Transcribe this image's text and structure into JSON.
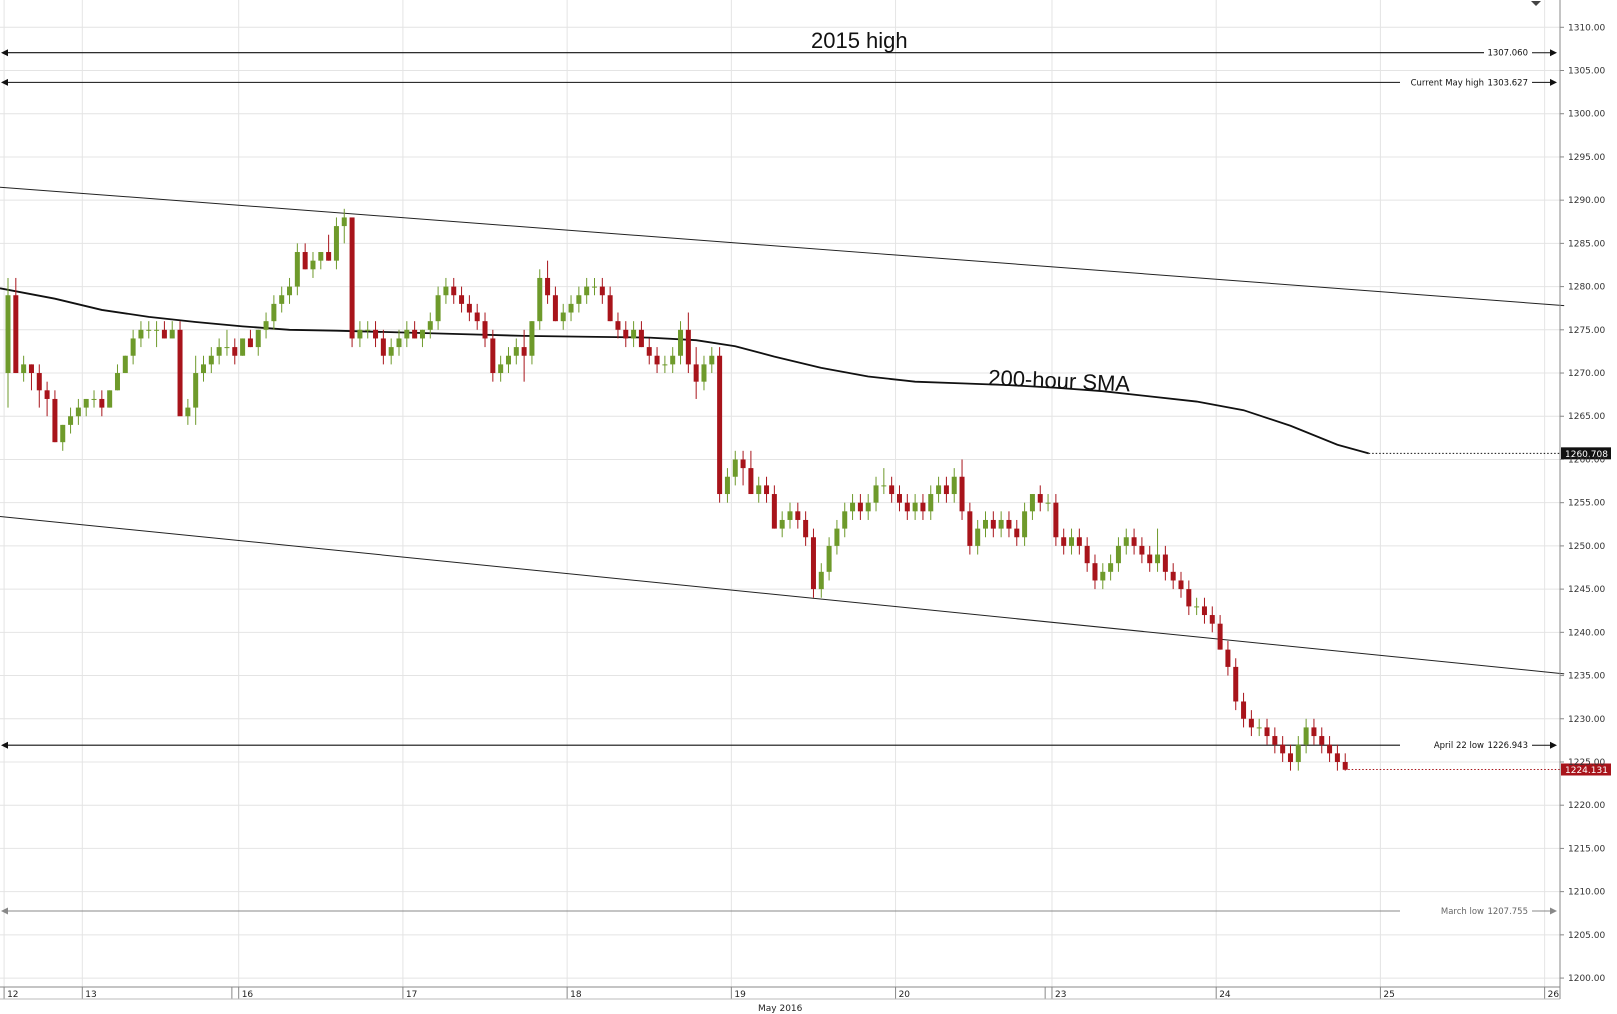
{
  "chart_data": {
    "type": "candlestick",
    "instrument_month_label": "May 2016",
    "y_axis": {
      "range": [
        1200,
        1312
      ],
      "ticks": [
        "1310.00",
        "1305.00",
        "1300.00",
        "1295.00",
        "1290.00",
        "1285.00",
        "1280.00",
        "1275.00",
        "1270.00",
        "1265.00",
        "1260.00",
        "1255.00",
        "1250.00",
        "1245.00",
        "1240.00",
        "1235.00",
        "1230.00",
        "1225.00",
        "1220.00",
        "1215.00",
        "1210.00",
        "1205.00",
        "1200.00"
      ],
      "tick_values": [
        1310,
        1305,
        1300,
        1295,
        1290,
        1285,
        1280,
        1275,
        1270,
        1265,
        1260,
        1255,
        1250,
        1245,
        1240,
        1235,
        1230,
        1225,
        1220,
        1215,
        1210,
        1205,
        1200
      ]
    },
    "x_axis": {
      "days": [
        {
          "label": "12",
          "start": 0
        },
        {
          "label": "13",
          "start": 10
        },
        {
          "label": "16",
          "start": 30
        },
        {
          "label": "17",
          "start": 51
        },
        {
          "label": "18",
          "start": 72
        },
        {
          "label": "19",
          "start": 93
        },
        {
          "label": "20",
          "start": 114
        },
        {
          "label": "23",
          "start": 134
        },
        {
          "label": "24",
          "start": 155
        },
        {
          "label": "25",
          "start": 176
        },
        {
          "label": "26",
          "start": 197
        }
      ],
      "session_breaks": [
        29,
        133
      ]
    },
    "grid": true,
    "levels": [
      {
        "name": "2015 high",
        "value_label": "1307.060",
        "value": 1307.06,
        "style": "solid"
      },
      {
        "name": "Current May high",
        "value_label": "1303.627",
        "value": 1303.627,
        "style": "solid"
      },
      {
        "name": "April 22 low",
        "value_label": "1226.943",
        "value": 1226.943,
        "style": "solid"
      },
      {
        "name": "March low",
        "value_label": "1207.755",
        "value": 1207.755,
        "style": "muted"
      }
    ],
    "annotations": {
      "level_title": "2015 high",
      "sma_title": "200-hour SMA"
    },
    "price_tags": [
      {
        "value_label": "1260.708",
        "value": 1260.708,
        "color": "#111111"
      },
      {
        "value_label": "1224.131",
        "value": 1224.131,
        "color": "#a8141b"
      }
    ],
    "channel": {
      "upper": [
        [
          0,
          1291.5
        ],
        [
          199,
          1277.8
        ]
      ],
      "lower": [
        [
          0,
          1253.4
        ],
        [
          199,
          1235.2
        ]
      ]
    },
    "sma": [
      [
        0,
        1279.8
      ],
      [
        6,
        1278.6
      ],
      [
        12,
        1277.3
      ],
      [
        18,
        1276.5
      ],
      [
        24,
        1275.9
      ],
      [
        30,
        1275.4
      ],
      [
        36,
        1275.0
      ],
      [
        42,
        1274.9
      ],
      [
        50,
        1274.7
      ],
      [
        58,
        1274.5
      ],
      [
        66,
        1274.3
      ],
      [
        74,
        1274.2
      ],
      [
        82,
        1274.1
      ],
      [
        88,
        1273.8
      ],
      [
        93,
        1273.1
      ],
      [
        98,
        1271.9
      ],
      [
        104,
        1270.6
      ],
      [
        110,
        1269.6
      ],
      [
        116,
        1269.0
      ],
      [
        122,
        1268.8
      ],
      [
        128,
        1268.6
      ],
      [
        134,
        1268.3
      ],
      [
        140,
        1267.9
      ],
      [
        146,
        1267.3
      ],
      [
        152,
        1266.7
      ],
      [
        158,
        1265.7
      ],
      [
        164,
        1263.9
      ],
      [
        170,
        1261.7
      ],
      [
        174,
        1260.7
      ]
    ],
    "candles_ohlc": [
      [
        1270,
        1281,
        1266,
        1279
      ],
      [
        1279,
        1281,
        1270,
        1270
      ],
      [
        1270,
        1272,
        1269,
        1271
      ],
      [
        1271,
        1271,
        1268,
        1270
      ],
      [
        1270,
        1271,
        1266,
        1268
      ],
      [
        1268,
        1269,
        1265,
        1267
      ],
      [
        1267,
        1268,
        1262,
        1262
      ],
      [
        1262,
        1264,
        1261,
        1264
      ],
      [
        1264,
        1266,
        1263,
        1265
      ],
      [
        1265,
        1267,
        1264,
        1266
      ],
      [
        1266,
        1267,
        1265,
        1267
      ],
      [
        1267,
        1268,
        1266,
        1267
      ],
      [
        1267,
        1268,
        1265,
        1266
      ],
      [
        1266,
        1268,
        1266,
        1268
      ],
      [
        1268,
        1271,
        1268,
        1270
      ],
      [
        1270,
        1272,
        1270,
        1272
      ],
      [
        1272,
        1275,
        1271,
        1274
      ],
      [
        1274,
        1276,
        1273,
        1275
      ],
      [
        1275,
        1276,
        1274,
        1275
      ],
      [
        1275,
        1276,
        1273,
        1275
      ],
      [
        1275,
        1276,
        1274,
        1274
      ],
      [
        1274,
        1276,
        1274,
        1275
      ],
      [
        1275,
        1276,
        1267,
        1265
      ],
      [
        1265,
        1267,
        1264,
        1266
      ],
      [
        1266,
        1272,
        1264,
        1270
      ],
      [
        1270,
        1272,
        1269,
        1271
      ],
      [
        1271,
        1273,
        1270,
        1272
      ],
      [
        1272,
        1274,
        1271,
        1273
      ],
      [
        1273,
        1275,
        1272,
        1273
      ],
      [
        1273,
        1274,
        1271,
        1272
      ],
      [
        1272,
        1274,
        1272,
        1274
      ],
      [
        1274,
        1275,
        1273,
        1273
      ],
      [
        1273,
        1275,
        1272,
        1275
      ],
      [
        1275,
        1277,
        1274,
        1276
      ],
      [
        1276,
        1279,
        1275,
        1278
      ],
      [
        1278,
        1280,
        1277,
        1279
      ],
      [
        1279,
        1281,
        1278,
        1280
      ],
      [
        1280,
        1285,
        1279,
        1284
      ],
      [
        1284,
        1285,
        1282,
        1282
      ],
      [
        1282,
        1284,
        1281,
        1283
      ],
      [
        1283,
        1284,
        1282,
        1284
      ],
      [
        1284,
        1286,
        1283,
        1283
      ],
      [
        1283,
        1288,
        1282,
        1287
      ],
      [
        1287,
        1289,
        1285,
        1288
      ],
      [
        1288,
        1288,
        1273,
        1274
      ],
      [
        1274,
        1276,
        1273,
        1275
      ],
      [
        1275,
        1276,
        1274,
        1275
      ],
      [
        1275,
        1276,
        1273,
        1274
      ],
      [
        1274,
        1275,
        1271,
        1272
      ],
      [
        1272,
        1274,
        1271,
        1273
      ],
      [
        1273,
        1275,
        1272,
        1274
      ],
      [
        1274,
        1276,
        1273,
        1275
      ],
      [
        1275,
        1276,
        1274,
        1274
      ],
      [
        1274,
        1275,
        1273,
        1275
      ],
      [
        1275,
        1277,
        1274,
        1276
      ],
      [
        1276,
        1280,
        1275,
        1279
      ],
      [
        1279,
        1281,
        1278,
        1280
      ],
      [
        1280,
        1281,
        1278,
        1279
      ],
      [
        1279,
        1280,
        1277,
        1278
      ],
      [
        1278,
        1279,
        1276,
        1277
      ],
      [
        1277,
        1278,
        1275,
        1276
      ],
      [
        1276,
        1277,
        1273,
        1274
      ],
      [
        1274,
        1275,
        1269,
        1270
      ],
      [
        1270,
        1272,
        1269,
        1271
      ],
      [
        1271,
        1273,
        1270,
        1272
      ],
      [
        1272,
        1274,
        1271,
        1273
      ],
      [
        1273,
        1275,
        1269,
        1272
      ],
      [
        1272,
        1276,
        1271,
        1276
      ],
      [
        1276,
        1282,
        1275,
        1281
      ],
      [
        1281,
        1283,
        1278,
        1279
      ],
      [
        1279,
        1280,
        1276,
        1276
      ],
      [
        1276,
        1278,
        1275,
        1277
      ],
      [
        1277,
        1279,
        1276,
        1278
      ],
      [
        1278,
        1280,
        1277,
        1279
      ],
      [
        1279,
        1281,
        1278,
        1280
      ],
      [
        1280,
        1281,
        1279,
        1280
      ],
      [
        1280,
        1281,
        1278,
        1279
      ],
      [
        1279,
        1280,
        1276,
        1276
      ],
      [
        1276,
        1277,
        1274,
        1275
      ],
      [
        1275,
        1276,
        1273,
        1274
      ],
      [
        1274,
        1276,
        1273,
        1275
      ],
      [
        1275,
        1276,
        1273,
        1273
      ],
      [
        1273,
        1274,
        1271,
        1272
      ],
      [
        1272,
        1273,
        1270,
        1271
      ],
      [
        1271,
        1272,
        1270,
        1271
      ],
      [
        1271,
        1273,
        1270,
        1272
      ],
      [
        1272,
        1276,
        1271,
        1275
      ],
      [
        1275,
        1277,
        1270,
        1271
      ],
      [
        1271,
        1273,
        1267,
        1269
      ],
      [
        1269,
        1272,
        1268,
        1271
      ],
      [
        1271,
        1273,
        1270,
        1272
      ],
      [
        1272,
        1273,
        1255,
        1256
      ],
      [
        1256,
        1259,
        1255,
        1258
      ],
      [
        1258,
        1261,
        1257,
        1260
      ],
      [
        1260,
        1261,
        1257,
        1259
      ],
      [
        1259,
        1261,
        1256,
        1256
      ],
      [
        1256,
        1258,
        1255,
        1257
      ],
      [
        1257,
        1258,
        1255,
        1256
      ],
      [
        1256,
        1257,
        1252,
        1252
      ],
      [
        1252,
        1254,
        1251,
        1253
      ],
      [
        1253,
        1255,
        1252,
        1254
      ],
      [
        1254,
        1255,
        1252,
        1253
      ],
      [
        1253,
        1254,
        1250,
        1251
      ],
      [
        1251,
        1252,
        1244,
        1245
      ],
      [
        1245,
        1248,
        1244,
        1247
      ],
      [
        1247,
        1251,
        1246,
        1250
      ],
      [
        1250,
        1253,
        1249,
        1252
      ],
      [
        1252,
        1255,
        1251,
        1254
      ],
      [
        1254,
        1256,
        1253,
        1255
      ],
      [
        1255,
        1256,
        1253,
        1254
      ],
      [
        1254,
        1256,
        1253,
        1255
      ],
      [
        1255,
        1258,
        1254,
        1257
      ],
      [
        1257,
        1259,
        1256,
        1257
      ],
      [
        1257,
        1258,
        1255,
        1256
      ],
      [
        1256,
        1257,
        1254,
        1255
      ],
      [
        1255,
        1256,
        1253,
        1254
      ],
      [
        1254,
        1256,
        1253,
        1255
      ],
      [
        1255,
        1256,
        1253,
        1254
      ],
      [
        1254,
        1257,
        1253,
        1256
      ],
      [
        1256,
        1258,
        1255,
        1257
      ],
      [
        1257,
        1258,
        1255,
        1256
      ],
      [
        1256,
        1259,
        1255,
        1258
      ],
      [
        1258,
        1260,
        1253,
        1254
      ],
      [
        1254,
        1255,
        1249,
        1250
      ],
      [
        1250,
        1253,
        1249,
        1252
      ],
      [
        1252,
        1254,
        1251,
        1253
      ],
      [
        1253,
        1254,
        1251,
        1252
      ],
      [
        1252,
        1254,
        1251,
        1253
      ],
      [
        1253,
        1254,
        1251,
        1252
      ],
      [
        1252,
        1253,
        1250,
        1251
      ],
      [
        1251,
        1255,
        1250,
        1254
      ],
      [
        1254,
        1256,
        1253,
        1256
      ],
      [
        1256,
        1257,
        1254,
        1255
      ],
      [
        1255,
        1256,
        1254,
        1255
      ],
      [
        1255,
        1256,
        1250,
        1251
      ],
      [
        1251,
        1252,
        1249,
        1250
      ],
      [
        1250,
        1252,
        1249,
        1251
      ],
      [
        1251,
        1252,
        1249,
        1250
      ],
      [
        1250,
        1251,
        1247,
        1248
      ],
      [
        1248,
        1249,
        1245,
        1246
      ],
      [
        1246,
        1248,
        1245,
        1247
      ],
      [
        1247,
        1249,
        1246,
        1248
      ],
      [
        1248,
        1251,
        1247,
        1250
      ],
      [
        1250,
        1252,
        1249,
        1251
      ],
      [
        1251,
        1252,
        1249,
        1250
      ],
      [
        1250,
        1251,
        1248,
        1249
      ],
      [
        1249,
        1250,
        1247,
        1248
      ],
      [
        1248,
        1252,
        1247,
        1249
      ],
      [
        1249,
        1250,
        1246,
        1247
      ],
      [
        1247,
        1248,
        1245,
        1246
      ],
      [
        1246,
        1247,
        1244,
        1245
      ],
      [
        1245,
        1246,
        1242,
        1243
      ],
      [
        1243,
        1244,
        1242,
        1243
      ],
      [
        1243,
        1244,
        1241,
        1242
      ],
      [
        1242,
        1243,
        1240,
        1241
      ],
      [
        1241,
        1242,
        1238,
        1238
      ],
      [
        1238,
        1239,
        1235,
        1236
      ],
      [
        1236,
        1237,
        1231,
        1232
      ],
      [
        1232,
        1233,
        1229,
        1230
      ],
      [
        1230,
        1231,
        1228,
        1229
      ],
      [
        1229,
        1230,
        1228,
        1229
      ],
      [
        1229,
        1230,
        1227,
        1228
      ],
      [
        1228,
        1229,
        1226,
        1227
      ],
      [
        1227,
        1228,
        1225,
        1226
      ],
      [
        1226,
        1227,
        1224,
        1225
      ],
      [
        1225,
        1228,
        1224,
        1227
      ],
      [
        1227,
        1230,
        1226,
        1229
      ],
      [
        1229,
        1230,
        1227,
        1228
      ],
      [
        1228,
        1229,
        1226,
        1227
      ],
      [
        1227,
        1228,
        1225,
        1226
      ],
      [
        1226,
        1227,
        1224,
        1225
      ],
      [
        1225,
        1226,
        1224,
        1224.1
      ]
    ],
    "colors": {
      "up": "#6e9a2b",
      "down": "#a8141b",
      "line": "#111111",
      "grid": "#e4e4e4",
      "axis": "#888888"
    }
  }
}
